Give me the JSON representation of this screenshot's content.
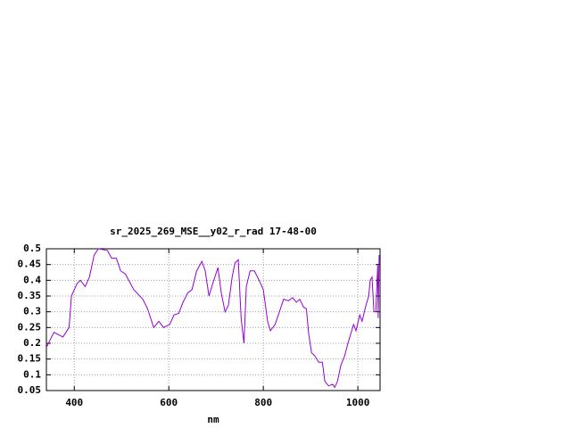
{
  "chart_data": {
    "type": "line",
    "title": "sr_2025_269_MSE__y02_r_rad 17-48-00",
    "x_label": "nm",
    "x": [
      342,
      357,
      376,
      389,
      394,
      406,
      413,
      423,
      432,
      442,
      451,
      470,
      479,
      489,
      498,
      508,
      526,
      545,
      555,
      568,
      579,
      589,
      602,
      611,
      621,
      630,
      640,
      649,
      659,
      670,
      677,
      685,
      693,
      704,
      711,
      719,
      726,
      734,
      740,
      747,
      753,
      759,
      764,
      772,
      781,
      791,
      800,
      809,
      815,
      825,
      834,
      843,
      853,
      862,
      870,
      877,
      885,
      891,
      896,
      902,
      909,
      917,
      925,
      930,
      938,
      947,
      951,
      957,
      964,
      972,
      979,
      987,
      991,
      996,
      1004,
      1009,
      1017,
      1023,
      1026,
      1030,
      1034,
      1038,
      1042,
      1043,
      1045
    ],
    "series": [
      {
        "name": "sr_2025_269_MSE__y02_r_rad",
        "color": "#9400d3",
        "values": [
          0.19,
          0.235,
          0.22,
          0.25,
          0.35,
          0.39,
          0.4,
          0.38,
          0.41,
          0.48,
          0.5,
          0.495,
          0.47,
          0.47,
          0.43,
          0.42,
          0.37,
          0.34,
          0.31,
          0.25,
          0.27,
          0.25,
          0.26,
          0.29,
          0.295,
          0.33,
          0.36,
          0.37,
          0.43,
          0.46,
          0.43,
          0.35,
          0.39,
          0.44,
          0.36,
          0.3,
          0.32,
          0.41,
          0.455,
          0.465,
          0.28,
          0.2,
          0.38,
          0.43,
          0.43,
          0.4,
          0.37,
          0.27,
          0.24,
          0.26,
          0.3,
          0.34,
          0.335,
          0.345,
          0.33,
          0.34,
          0.315,
          0.31,
          0.23,
          0.17,
          0.16,
          0.14,
          0.14,
          0.08,
          0.065,
          0.07,
          0.06,
          0.08,
          0.13,
          0.16,
          0.2,
          0.24,
          0.26,
          0.24,
          0.29,
          0.27,
          0.32,
          0.35,
          0.4,
          0.41,
          0.3,
          0.3,
          0.45,
          0.28,
          0.48
        ]
      }
    ],
    "xlim": [
      341,
      1047
    ],
    "xticks": [
      400,
      600,
      800,
      1000
    ],
    "ylim": [
      0.05,
      0.5
    ],
    "yticks": [
      0.05,
      0.1,
      0.15,
      0.2,
      0.25,
      0.3,
      0.35,
      0.4,
      0.45,
      0.5
    ],
    "grid": true
  }
}
